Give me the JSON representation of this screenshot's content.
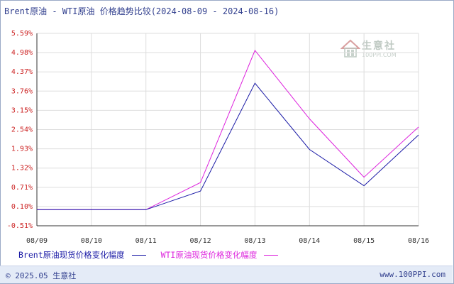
{
  "chart_data": {
    "type": "line",
    "title": "Brent原油 - WTI原油 价格趋势比较(2024-08-09 - 2024-08-16)",
    "categories": [
      "08/09",
      "08/10",
      "08/11",
      "08/12",
      "08/13",
      "08/14",
      "08/15",
      "08/16"
    ],
    "yticks": [
      "5.59%",
      "4.98%",
      "4.37%",
      "3.76%",
      "3.15%",
      "2.54%",
      "1.93%",
      "1.32%",
      "0.71%",
      "0.10%",
      "-0.51%"
    ],
    "ylim": [
      -0.51,
      5.59
    ],
    "grid": true,
    "legend_position": "bottom",
    "series": [
      {
        "name": "Brent原油现货价格变化幅度",
        "color": "#1a1aa6",
        "values": [
          0.0,
          0.0,
          0.0,
          0.59,
          4.01,
          1.91,
          0.76,
          2.37
        ]
      },
      {
        "name": "WTI原油现货价格变化幅度",
        "color": "#dd22dd",
        "values": [
          0.0,
          0.0,
          0.0,
          0.86,
          5.05,
          2.88,
          1.03,
          2.62
        ]
      }
    ]
  },
  "footer": {
    "copyright": "© 2025.05 生意社",
    "site": "www.100PPI.com"
  },
  "watermark": {
    "text": "生意社",
    "sub": "100PPI.COM"
  }
}
